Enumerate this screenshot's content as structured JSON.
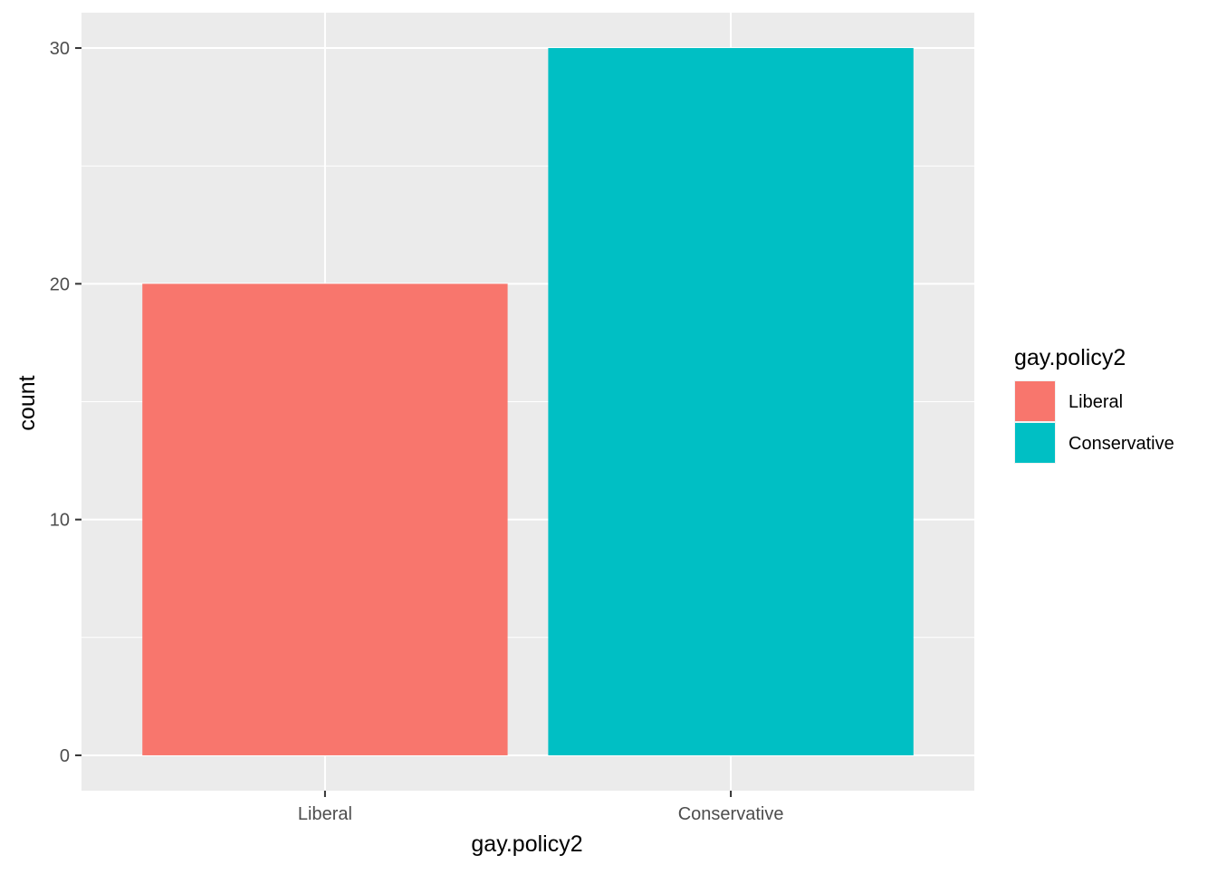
{
  "chart_data": {
    "type": "bar",
    "categories": [
      "Liberal",
      "Conservative"
    ],
    "values": [
      20,
      30
    ],
    "colors": [
      "#F8766D",
      "#00BFC4"
    ],
    "xlabel": "gay.policy2",
    "ylabel": "count",
    "ylim": [
      -1.5,
      31.5
    ],
    "yticks": [
      0,
      10,
      20,
      30
    ],
    "ytick_labels": [
      "0",
      "10",
      "20",
      "30"
    ],
    "grid": true,
    "panel_background": "#EBEBEB",
    "grid_color": "#FFFFFF",
    "legend": {
      "title": "gay.policy2",
      "placement": "right",
      "entries": [
        {
          "label": "Liberal",
          "color": "#F8766D"
        },
        {
          "label": "Conservative",
          "color": "#00BFC4"
        }
      ]
    }
  }
}
